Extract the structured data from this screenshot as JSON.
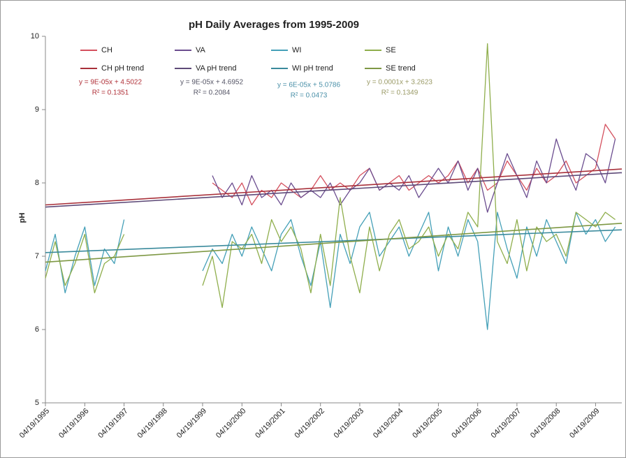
{
  "chart_data": {
    "type": "line",
    "title": "pH Daily Averages from 1995-2009",
    "y_label": "pH",
    "ylim": [
      5,
      10
    ],
    "yticks": [
      5,
      6,
      7,
      8,
      9,
      10
    ],
    "xlim": [
      "04/19/1995",
      "12/19/2009"
    ],
    "xticks": [
      "04/19/1995",
      "04/19/1996",
      "04/19/1997",
      "04/19/1998",
      "04/19/1999",
      "04/19/2000",
      "04/19/2001",
      "04/19/2002",
      "04/19/2003",
      "04/19/2004",
      "04/19/2005",
      "04/19/2006",
      "04/19/2007",
      "04/19/2008",
      "04/19/2009"
    ],
    "x": [
      "04/19/1995",
      "07/19/1995",
      "10/19/1995",
      "01/19/1996",
      "04/19/1996",
      "07/19/1996",
      "10/19/1996",
      "01/19/1997",
      "04/19/1997",
      "07/19/1997",
      "10/19/1997",
      "01/19/1998",
      "04/19/1998",
      "07/19/1998",
      "10/19/1998",
      "01/19/1999",
      "04/19/1999",
      "07/19/1999",
      "10/19/1999",
      "01/19/2000",
      "04/19/2000",
      "07/19/2000",
      "10/19/2000",
      "01/19/2001",
      "04/19/2001",
      "07/19/2001",
      "10/19/2001",
      "01/19/2002",
      "04/19/2002",
      "07/19/2002",
      "10/19/2002",
      "01/19/2003",
      "04/19/2003",
      "07/19/2003",
      "10/19/2003",
      "01/19/2004",
      "04/19/2004",
      "07/19/2004",
      "10/19/2004",
      "01/19/2005",
      "04/19/2005",
      "07/19/2005",
      "10/19/2005",
      "01/19/2006",
      "04/19/2006",
      "07/19/2006",
      "10/19/2006",
      "01/19/2007",
      "04/19/2007",
      "07/19/2007",
      "10/19/2007",
      "01/19/2008",
      "04/19/2008",
      "07/19/2008",
      "10/19/2008",
      "01/19/2009",
      "04/19/2009",
      "07/19/2009",
      "10/19/2009"
    ],
    "series": [
      {
        "name": "CH",
        "color": "#d4505e",
        "values": [
          null,
          null,
          null,
          null,
          null,
          null,
          null,
          null,
          null,
          null,
          null,
          null,
          null,
          null,
          null,
          null,
          null,
          8.0,
          7.9,
          7.8,
          8.0,
          7.7,
          7.9,
          7.8,
          8.0,
          7.9,
          7.8,
          7.9,
          8.1,
          7.9,
          8.0,
          7.9,
          8.1,
          8.2,
          7.9,
          8.0,
          8.1,
          7.9,
          8.0,
          8.1,
          8.0,
          8.1,
          8.3,
          8.0,
          8.2,
          7.9,
          8.0,
          8.3,
          8.1,
          7.9,
          8.2,
          8.0,
          8.1,
          8.3,
          8.0,
          8.1,
          8.2,
          8.8,
          8.6
        ]
      },
      {
        "name": "VA",
        "color": "#6b4d8f",
        "values": [
          null,
          null,
          null,
          null,
          null,
          null,
          null,
          null,
          null,
          null,
          null,
          null,
          null,
          null,
          null,
          null,
          null,
          8.1,
          7.8,
          8.0,
          7.7,
          8.1,
          7.8,
          7.9,
          7.7,
          8.0,
          7.8,
          7.9,
          7.8,
          8.0,
          7.7,
          7.9,
          8.0,
          8.2,
          7.9,
          8.0,
          7.9,
          8.1,
          7.8,
          8.0,
          8.2,
          8.0,
          8.3,
          7.9,
          8.2,
          7.6,
          8.0,
          8.4,
          8.1,
          7.8,
          8.3,
          8.0,
          8.6,
          8.2,
          7.9,
          8.4,
          8.3,
          8.0,
          8.6
        ]
      },
      {
        "name": "WI",
        "color": "#45a0b8",
        "values": [
          6.8,
          7.3,
          6.5,
          7.0,
          7.4,
          6.6,
          7.1,
          6.9,
          7.5,
          null,
          null,
          null,
          null,
          null,
          null,
          null,
          6.8,
          7.1,
          6.9,
          7.3,
          7.0,
          7.4,
          7.1,
          6.8,
          7.3,
          7.5,
          7.0,
          6.6,
          7.2,
          6.3,
          7.3,
          6.9,
          7.4,
          7.6,
          7.0,
          7.2,
          7.4,
          7.0,
          7.3,
          7.6,
          6.8,
          7.4,
          7.0,
          7.5,
          7.2,
          6.0,
          7.6,
          7.1,
          6.7,
          7.4,
          7.0,
          7.5,
          7.2,
          6.9,
          7.6,
          7.3,
          7.5,
          7.2,
          7.4
        ]
      },
      {
        "name": "SE",
        "color": "#8fae4c",
        "values": [
          6.7,
          7.2,
          6.6,
          6.9,
          7.3,
          6.5,
          6.9,
          7.0,
          7.3,
          null,
          null,
          null,
          null,
          null,
          null,
          null,
          6.6,
          7.0,
          6.3,
          7.2,
          7.1,
          7.3,
          6.9,
          7.5,
          7.2,
          7.4,
          7.1,
          6.5,
          7.3,
          6.6,
          7.8,
          7.0,
          6.5,
          7.4,
          6.8,
          7.3,
          7.5,
          7.1,
          7.2,
          7.4,
          7.0,
          7.3,
          7.1,
          7.6,
          7.4,
          9.9,
          7.2,
          6.9,
          7.5,
          6.8,
          7.4,
          7.2,
          7.3,
          7.0,
          7.6,
          7.5,
          7.4,
          7.6,
          7.5
        ]
      }
    ],
    "trends": [
      {
        "name": "CH pH trend",
        "color": "#a8303a",
        "x": [
          "04/19/1995",
          "12/19/2009"
        ],
        "values": [
          7.7,
          8.19
        ]
      },
      {
        "name": "VA pH trend",
        "color": "#5e4a78",
        "x": [
          "04/19/1995",
          "12/19/2009"
        ],
        "values": [
          7.67,
          8.14
        ]
      },
      {
        "name": "WI pH trend",
        "color": "#3a8a9c",
        "x": [
          "04/19/1995",
          "12/19/2009"
        ],
        "values": [
          7.05,
          7.36
        ]
      },
      {
        "name": "SE trend",
        "color": "#7e9844",
        "x": [
          "04/19/1995",
          "12/19/2009"
        ],
        "values": [
          6.92,
          7.45
        ]
      }
    ],
    "annotations": [
      {
        "equation": "y = 9E-05x + 4.5022",
        "r2": "R² = 0.1351",
        "color": "#b03038"
      },
      {
        "equation": "y = 9E-05x + 4.6952",
        "r2": "R² = 0.2084",
        "color": "#555566"
      },
      {
        "equation": "y = 6E-05x + 5.0786",
        "r2": "R² = 0.0473",
        "color": "#4a90a8"
      },
      {
        "equation": "y = 0.0001x + 3.2623",
        "r2": "R² = 0.1349",
        "color": "#9a9a66"
      }
    ]
  }
}
